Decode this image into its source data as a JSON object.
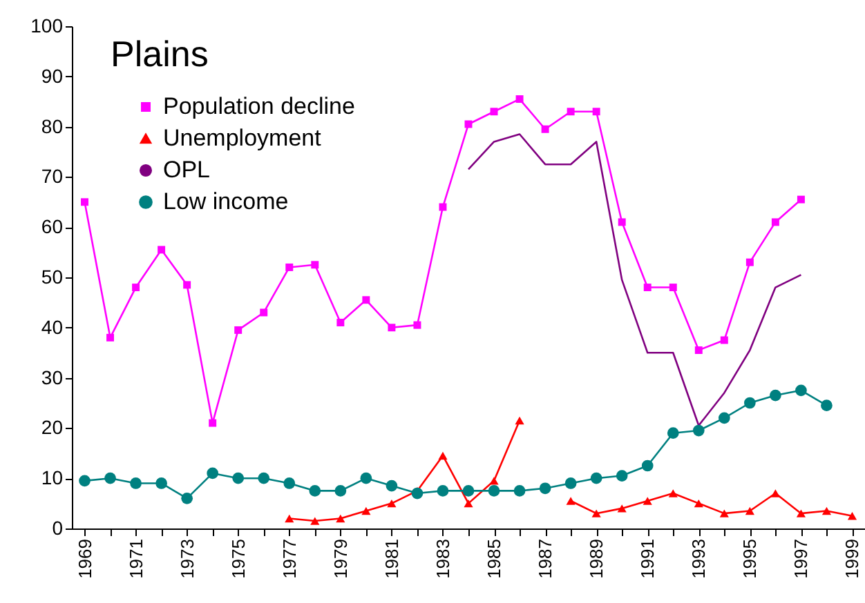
{
  "chart_data": {
    "type": "line",
    "title": "Plains",
    "categories": [
      "1969",
      null,
      "1971",
      null,
      "1973",
      null,
      "1975",
      null,
      "1977",
      null,
      "1979",
      null,
      "1981",
      null,
      "1983",
      null,
      "1985",
      null,
      "1987",
      null,
      "1989",
      null,
      "1991",
      null,
      "1993",
      null,
      "1995",
      null,
      "1997",
      null,
      "1999"
    ],
    "ylim": [
      0,
      100
    ],
    "yticks": [
      0,
      10,
      20,
      30,
      40,
      50,
      60,
      70,
      80,
      90,
      100
    ],
    "grid": false,
    "legend": "top left",
    "series": [
      {
        "name": "Population decline",
        "color": "#ff00ff",
        "marker": "square",
        "values": [
          65,
          38,
          48,
          55.5,
          48.5,
          21,
          39.5,
          43,
          52,
          52.5,
          41,
          45.5,
          40,
          40.5,
          64,
          80.5,
          83,
          85.5,
          79.5,
          83,
          83,
          61,
          48,
          48,
          35.5,
          37.5,
          53,
          61,
          65.5,
          null,
          null
        ]
      },
      {
        "name": "Unemployment",
        "color": "#ff0000",
        "marker": "triangle",
        "values": [
          null,
          null,
          null,
          null,
          null,
          null,
          null,
          null,
          2,
          1.5,
          2,
          3.5,
          5,
          7.5,
          14.5,
          5,
          9.5,
          21.5,
          null,
          5.5,
          3,
          4,
          5.5,
          7,
          5,
          3,
          3.5,
          7,
          3,
          3.5,
          2.5
        ]
      },
      {
        "name": "OPL",
        "color": "#800080",
        "marker": "none",
        "values": [
          null,
          null,
          null,
          null,
          null,
          null,
          null,
          null,
          null,
          null,
          null,
          null,
          null,
          null,
          null,
          71.5,
          77,
          78.5,
          72.5,
          72.5,
          77,
          49.5,
          35,
          35,
          20.5,
          27,
          35.5,
          48,
          50.5,
          null,
          null
        ]
      },
      {
        "name": "Low income",
        "color": "#008080",
        "marker": "circle",
        "values": [
          9.5,
          10,
          9,
          9,
          6,
          11,
          10,
          10,
          9,
          7.5,
          7.5,
          10,
          8.5,
          7,
          7.5,
          7.5,
          7.5,
          7.5,
          8,
          9,
          10,
          10.5,
          12.5,
          19,
          19.5,
          22,
          25,
          26.5,
          27.5,
          24.5,
          null
        ]
      }
    ]
  }
}
